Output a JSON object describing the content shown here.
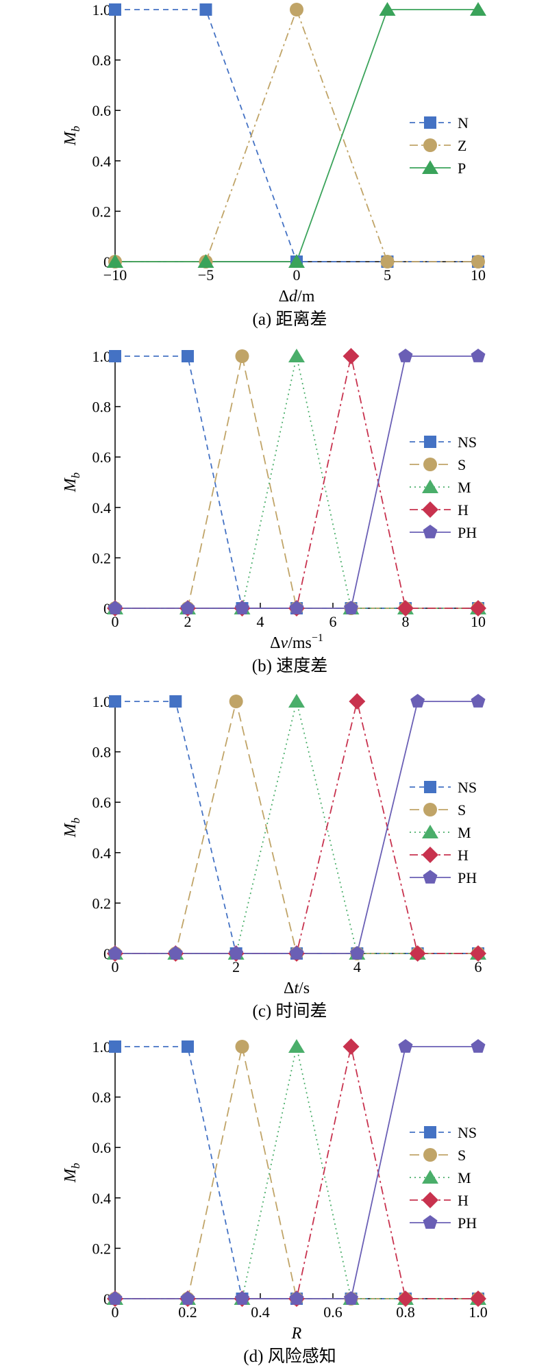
{
  "colors": {
    "N": "#4472c4",
    "NS": "#4472c4",
    "Z": "#c0a467",
    "S": "#c0a467",
    "P": "#3aa35a",
    "M": "#4aae6a",
    "H": "#c8324e",
    "PH": "#6a5fb5"
  },
  "chart_data": [
    {
      "type": "line",
      "caption": "(a) 距离差",
      "xlabel_pre": "Δ",
      "xlabel_var": "d",
      "xlabel_post": "/m",
      "xlabel_sup": "",
      "ylabel_main": "M",
      "ylabel_sub": "b",
      "xlim": [
        -10,
        10
      ],
      "ylim": [
        0,
        1
      ],
      "xticks": [
        -10,
        -5,
        0,
        5,
        10
      ],
      "xtick_labels": [
        "−10",
        "−5",
        "0",
        "5",
        "10"
      ],
      "yticks": [
        0,
        0.2,
        0.4,
        0.6,
        0.8,
        1.0
      ],
      "ytick_labels": [
        "0",
        "0.2",
        "0.4",
        "0.6",
        "0.8",
        "1.0"
      ],
      "series": [
        {
          "name": "N",
          "marker": "square",
          "dash": "dash",
          "color": "#4472c4",
          "x": [
            -10,
            -5,
            0,
            5,
            10
          ],
          "y": [
            1,
            1,
            0,
            0,
            0
          ]
        },
        {
          "name": "Z",
          "marker": "circle",
          "dash": "dashdot",
          "color": "#c0a467",
          "x": [
            -10,
            -5,
            0,
            5,
            10
          ],
          "y": [
            0,
            0,
            1,
            0,
            0
          ]
        },
        {
          "name": "P",
          "marker": "triangle",
          "dash": "solid",
          "color": "#3aa35a",
          "x": [
            -10,
            -5,
            0,
            5,
            10
          ],
          "y": [
            0,
            0,
            0,
            1,
            1
          ]
        }
      ]
    },
    {
      "type": "line",
      "caption": "(b) 速度差",
      "xlabel_pre": "Δ",
      "xlabel_var": "v",
      "xlabel_post": "/ms",
      "xlabel_sup": "−1",
      "ylabel_main": "M",
      "ylabel_sub": "b",
      "xlim": [
        0,
        10
      ],
      "ylim": [
        0,
        1
      ],
      "xticks": [
        0,
        2,
        4,
        6,
        8,
        10
      ],
      "xtick_labels": [
        "0",
        "2",
        "4",
        "6",
        "8",
        "10"
      ],
      "yticks": [
        0,
        0.2,
        0.4,
        0.6,
        0.8,
        1.0
      ],
      "ytick_labels": [
        "0",
        "0.2",
        "0.4",
        "0.6",
        "0.8",
        "1.0"
      ],
      "series": [
        {
          "name": "NS",
          "marker": "square",
          "dash": "dash",
          "color": "#4472c4",
          "x": [
            0,
            2,
            3.5,
            5,
            6.5,
            8,
            10
          ],
          "y": [
            1,
            1,
            0,
            0,
            0,
            0,
            0
          ]
        },
        {
          "name": "S",
          "marker": "circle",
          "dash": "longdash",
          "color": "#c0a467",
          "x": [
            0,
            2,
            3.5,
            5,
            6.5,
            8,
            10
          ],
          "y": [
            0,
            0,
            1,
            0,
            0,
            0,
            0
          ]
        },
        {
          "name": "M",
          "marker": "triangle",
          "dash": "dot",
          "color": "#4aae6a",
          "x": [
            0,
            2,
            3.5,
            5,
            6.5,
            8,
            10
          ],
          "y": [
            0,
            0,
            0,
            1,
            0,
            0,
            0
          ]
        },
        {
          "name": "H",
          "marker": "diamond",
          "dash": "dashdot",
          "color": "#c8324e",
          "x": [
            0,
            2,
            3.5,
            5,
            6.5,
            8,
            10
          ],
          "y": [
            0,
            0,
            0,
            0,
            1,
            0,
            0
          ]
        },
        {
          "name": "PH",
          "marker": "pentagon",
          "dash": "solid",
          "color": "#6a5fb5",
          "x": [
            0,
            2,
            3.5,
            5,
            6.5,
            8,
            10
          ],
          "y": [
            0,
            0,
            0,
            0,
            0,
            1,
            1
          ]
        }
      ]
    },
    {
      "type": "line",
      "caption": "(c) 时间差",
      "xlabel_pre": "Δ",
      "xlabel_var": "t",
      "xlabel_post": "/s",
      "xlabel_sup": "",
      "ylabel_main": "M",
      "ylabel_sub": "b",
      "xlim": [
        0,
        6
      ],
      "ylim": [
        0,
        1
      ],
      "xticks": [
        0,
        2,
        4,
        6
      ],
      "xtick_labels": [
        "0",
        "2",
        "4",
        "6"
      ],
      "yticks": [
        0,
        0.2,
        0.4,
        0.6,
        0.8,
        1.0
      ],
      "ytick_labels": [
        "0",
        "0.2",
        "0.4",
        "0.6",
        "0.8",
        "1.0"
      ],
      "series": [
        {
          "name": "NS",
          "marker": "square",
          "dash": "dash",
          "color": "#4472c4",
          "x": [
            0,
            1,
            2,
            3,
            4,
            5,
            6
          ],
          "y": [
            1,
            1,
            0,
            0,
            0,
            0,
            0
          ]
        },
        {
          "name": "S",
          "marker": "circle",
          "dash": "longdash",
          "color": "#c0a467",
          "x": [
            0,
            1,
            2,
            3,
            4,
            5,
            6
          ],
          "y": [
            0,
            0,
            1,
            0,
            0,
            0,
            0
          ]
        },
        {
          "name": "M",
          "marker": "triangle",
          "dash": "dot",
          "color": "#4aae6a",
          "x": [
            0,
            1,
            2,
            3,
            4,
            5,
            6
          ],
          "y": [
            0,
            0,
            0,
            1,
            0,
            0,
            0
          ]
        },
        {
          "name": "H",
          "marker": "diamond",
          "dash": "dashdot",
          "color": "#c8324e",
          "x": [
            0,
            1,
            2,
            3,
            4,
            5,
            6
          ],
          "y": [
            0,
            0,
            0,
            0,
            1,
            0,
            0
          ]
        },
        {
          "name": "PH",
          "marker": "pentagon",
          "dash": "solid",
          "color": "#6a5fb5",
          "x": [
            0,
            1,
            2,
            3,
            4,
            5,
            6
          ],
          "y": [
            0,
            0,
            0,
            0,
            0,
            1,
            1
          ]
        }
      ]
    },
    {
      "type": "line",
      "caption": "(d) 风险感知",
      "xlabel_pre": "",
      "xlabel_var": "R",
      "xlabel_post": "",
      "xlabel_sup": "",
      "ylabel_main": "M",
      "ylabel_sub": "b",
      "xlim": [
        0,
        1
      ],
      "ylim": [
        0,
        1
      ],
      "xticks": [
        0,
        0.2,
        0.4,
        0.6,
        0.8,
        1.0
      ],
      "xtick_labels": [
        "0",
        "0.2",
        "0.4",
        "0.6",
        "0.8",
        "1.0"
      ],
      "yticks": [
        0,
        0.2,
        0.4,
        0.6,
        0.8,
        1.0
      ],
      "ytick_labels": [
        "0",
        "0.2",
        "0.4",
        "0.6",
        "0.8",
        "1.0"
      ],
      "series": [
        {
          "name": "NS",
          "marker": "square",
          "dash": "dash",
          "color": "#4472c4",
          "x": [
            0,
            0.2,
            0.35,
            0.5,
            0.65,
            0.8,
            1.0
          ],
          "y": [
            1,
            1,
            0,
            0,
            0,
            0,
            0
          ]
        },
        {
          "name": "S",
          "marker": "circle",
          "dash": "longdash",
          "color": "#c0a467",
          "x": [
            0,
            0.2,
            0.35,
            0.5,
            0.65,
            0.8,
            1.0
          ],
          "y": [
            0,
            0,
            1,
            0,
            0,
            0,
            0
          ]
        },
        {
          "name": "M",
          "marker": "triangle",
          "dash": "dot",
          "color": "#4aae6a",
          "x": [
            0,
            0.2,
            0.35,
            0.5,
            0.65,
            0.8,
            1.0
          ],
          "y": [
            0,
            0,
            0,
            1,
            0,
            0,
            0
          ]
        },
        {
          "name": "H",
          "marker": "diamond",
          "dash": "dashdot",
          "color": "#c8324e",
          "x": [
            0,
            0.2,
            0.35,
            0.5,
            0.65,
            0.8,
            1.0
          ],
          "y": [
            0,
            0,
            0,
            0,
            1,
            0,
            0
          ]
        },
        {
          "name": "PH",
          "marker": "pentagon",
          "dash": "solid",
          "color": "#6a5fb5",
          "x": [
            0,
            0.2,
            0.35,
            0.5,
            0.65,
            0.8,
            1.0
          ],
          "y": [
            0,
            0,
            0,
            0,
            0,
            1,
            1
          ]
        }
      ]
    }
  ]
}
